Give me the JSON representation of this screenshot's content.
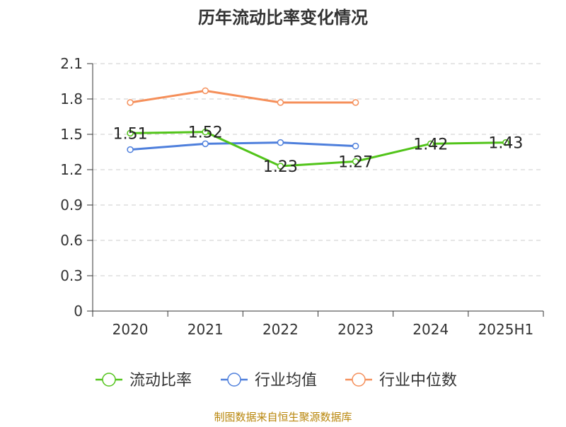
{
  "chart_data": {
    "type": "line",
    "title": "历年流动比率变化情况",
    "categories": [
      "2020",
      "2021",
      "2022",
      "2023",
      "2024",
      "2025H1"
    ],
    "ylim": [
      0,
      2.1
    ],
    "yticks": [
      "0",
      "0.3",
      "0.6",
      "0.9",
      "1.2",
      "1.5",
      "1.8",
      "2.1"
    ],
    "grid": true,
    "legend_position": "bottom",
    "series": [
      {
        "name": "流动比率",
        "color": "#52c41a",
        "values": [
          1.51,
          1.52,
          1.23,
          1.27,
          1.42,
          1.43
        ],
        "labels": [
          "1.51",
          "1.52",
          "1.23",
          "1.27",
          "1.42",
          "1.43"
        ]
      },
      {
        "name": "行业均值",
        "color": "#4e7fdc",
        "values": [
          1.37,
          1.42,
          1.43,
          1.4,
          null,
          null
        ]
      },
      {
        "name": "行业中位数",
        "color": "#f58f5a",
        "values": [
          1.77,
          1.87,
          1.77,
          1.77,
          null,
          null
        ]
      }
    ],
    "source": "制图数据来自恒生聚源数据库",
    "source_color": "#b8860b"
  }
}
